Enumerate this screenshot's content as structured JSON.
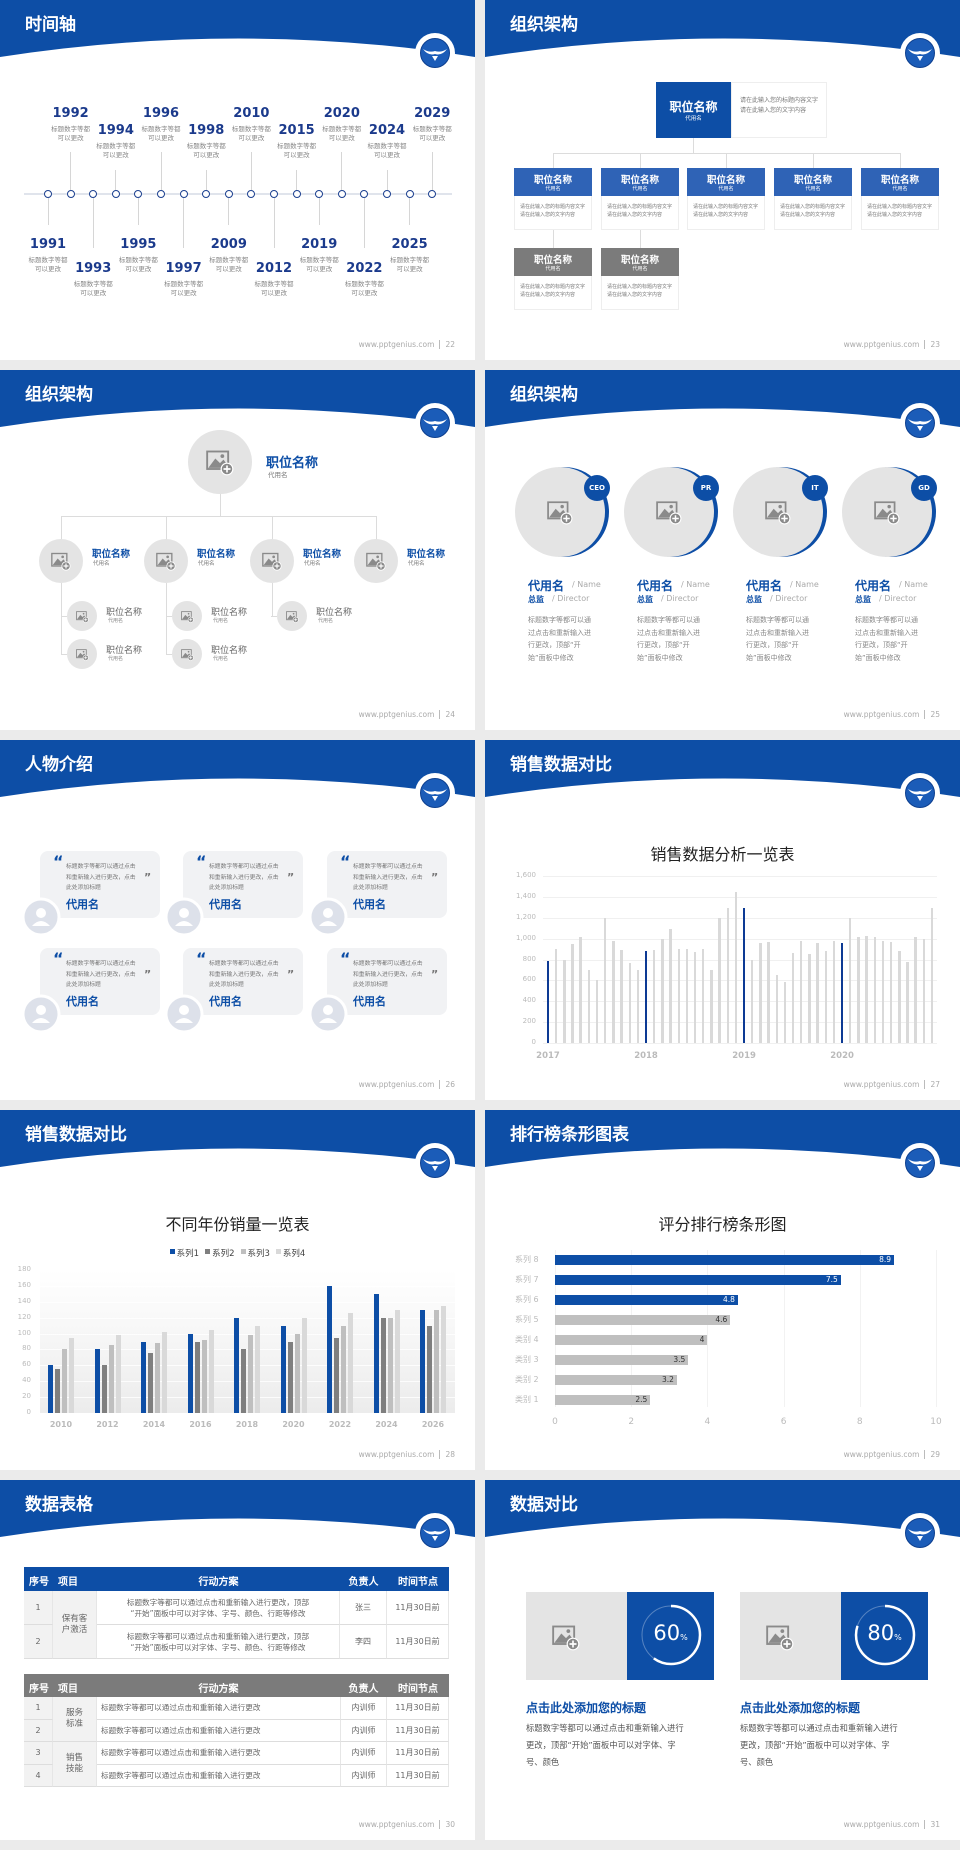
{
  "footer_url": "www.pptgenius.com",
  "colors": {
    "primary": "#0d4ea6",
    "org_box": "#2f63b6",
    "gray_box": "#7b7b7b",
    "light_gray": "#e4e4e4"
  },
  "slides": [
    {
      "title": "时间轴",
      "page": "22",
      "timeline": [
        {
          "year": "1991",
          "desc": [
            "标题数字等都",
            "可以更改"
          ]
        },
        {
          "year": "1992",
          "desc": [
            "标题数字等都",
            "可以更改"
          ]
        },
        {
          "year": "1993",
          "desc": [
            "标题数字等都",
            "可以更改"
          ]
        },
        {
          "year": "1994",
          "desc": [
            "标题数字等都",
            "可以更改"
          ]
        },
        {
          "year": "1995",
          "desc": [
            "标题数字等都",
            "可以更改"
          ]
        },
        {
          "year": "1996",
          "desc": [
            "标题数字等都",
            "可以更改"
          ]
        },
        {
          "year": "1997",
          "desc": [
            "标题数字等都",
            "可以更改"
          ]
        },
        {
          "year": "1998",
          "desc": [
            "标题数字等都",
            "可以更改"
          ]
        },
        {
          "year": "2009",
          "desc": [
            "标题数字等都",
            "可以更改"
          ]
        },
        {
          "year": "2010",
          "desc": [
            "标题数字等都",
            "可以更改"
          ]
        },
        {
          "year": "2012",
          "desc": [
            "标题数字等都",
            "可以更改"
          ]
        },
        {
          "year": "2015",
          "desc": [
            "标题数字等都",
            "可以更改"
          ]
        },
        {
          "year": "2019",
          "desc": [
            "标题数字等都",
            "可以更改"
          ]
        },
        {
          "year": "2020",
          "desc": [
            "标题数字等都",
            "可以更改"
          ]
        },
        {
          "year": "2022",
          "desc": [
            "标题数字等都",
            "可以更改"
          ]
        },
        {
          "year": "2024",
          "desc": [
            "标题数字等都",
            "可以更改"
          ]
        },
        {
          "year": "2025",
          "desc": [
            "标题数字等都",
            "可以更改"
          ]
        },
        {
          "year": "2029",
          "desc": [
            "标题数字等都",
            "可以更改"
          ]
        }
      ]
    },
    {
      "title": "组织架构",
      "page": "23",
      "top": {
        "name": "职位名称",
        "sub": "代用名",
        "desc": "请在此输入您的标题内容文字请在此输入您的文字内容"
      },
      "children": [
        {
          "name": "职位名称",
          "sub": "代用名",
          "desc": "请在此输入您的标题内容文字请在此输入您的文字内容"
        },
        {
          "name": "职位名称",
          "sub": "代用名",
          "desc": "请在此输入您的标题内容文字请在此输入您的文字内容"
        },
        {
          "name": "职位名称",
          "sub": "代用名",
          "desc": "请在此输入您的标题内容文字请在此输入您的文字内容"
        },
        {
          "name": "职位名称",
          "sub": "代用名",
          "desc": "请在此输入您的标题内容文字请在此输入您的文字内容"
        },
        {
          "name": "职位名称",
          "sub": "代用名",
          "desc": "请在此输入您的标题内容文字请在此输入您的文字内容"
        }
      ],
      "grandchildren": [
        {
          "name": "职位名称",
          "sub": "代用名",
          "desc": "请在此输入您的标题内容文字请在此输入您的文字内容"
        },
        {
          "name": "职位名称",
          "sub": "代用名",
          "desc": "请在此输入您的标题内容文字请在此输入您的文字内容"
        }
      ]
    },
    {
      "title": "组织架构",
      "page": "24",
      "top": {
        "name": "职位名称",
        "sub": "代用名"
      },
      "level2": [
        {
          "name": "职位名称",
          "sub": "代用名"
        },
        {
          "name": "职位名称",
          "sub": "代用名"
        },
        {
          "name": "职位名称",
          "sub": "代用名"
        },
        {
          "name": "职位名称",
          "sub": "代用名"
        }
      ],
      "level3": [
        {
          "name": "职位名称",
          "sub": "代用名"
        },
        {
          "name": "职位名称",
          "sub": "代用名"
        },
        {
          "name": "职位名称",
          "sub": "代用名"
        },
        {
          "name": "职位名称",
          "sub": "代用名"
        },
        {
          "name": "职位名称",
          "sub": "代用名"
        }
      ]
    },
    {
      "title": "组织架构",
      "page": "25",
      "members": [
        {
          "badge": "CEO",
          "name": "代用名",
          "name_en": "/ Name",
          "role": "总监",
          "role_en": "/ Director",
          "desc": [
            "标题数字等都可以通",
            "过点击和重新输入进",
            "行更改，顶部“开",
            "始”面板中修改"
          ]
        },
        {
          "badge": "PR",
          "name": "代用名",
          "name_en": "/ Name",
          "role": "总监",
          "role_en": "/ Director",
          "desc": [
            "标题数字等都可以通",
            "过点击和重新输入进",
            "行更改，顶部“开",
            "始”面板中修改"
          ]
        },
        {
          "badge": "IT",
          "name": "代用名",
          "name_en": "/ Name",
          "role": "总监",
          "role_en": "/ Director",
          "desc": [
            "标题数字等都可以通",
            "过点击和重新输入进",
            "行更改，顶部“开",
            "始”面板中修改"
          ]
        },
        {
          "badge": "GD",
          "name": "代用名",
          "name_en": "/ Name",
          "role": "总监",
          "role_en": "/ Director",
          "desc": [
            "标题数字等都可以通",
            "过点击和重新输入进",
            "行更改，顶部“开",
            "始”面板中修改"
          ]
        }
      ]
    },
    {
      "title": "人物介绍",
      "page": "26",
      "cards": [
        {
          "quote": [
            "标题数字等都可以通过点击",
            "和重新输入进行更改，点击",
            "此处添加标题"
          ],
          "name": "代用名"
        },
        {
          "quote": [
            "标题数字等都可以通过点击",
            "和重新输入进行更改，点击",
            "此处添加标题"
          ],
          "name": "代用名"
        },
        {
          "quote": [
            "标题数字等都可以通过点击",
            "和重新输入进行更改，点击",
            "此处添加标题"
          ],
          "name": "代用名"
        },
        {
          "quote": [
            "标题数字等都可以通过点击",
            "和重新输入进行更改，点击",
            "此处添加标题"
          ],
          "name": "代用名"
        },
        {
          "quote": [
            "标题数字等都可以通过点击",
            "和重新输入进行更改，点击",
            "此处添加标题"
          ],
          "name": "代用名"
        },
        {
          "quote": [
            "标题数字等都可以通过点击",
            "和重新输入进行更改，点击",
            "此处添加标题"
          ],
          "name": "代用名"
        }
      ]
    },
    {
      "title": "销售数据对比",
      "page": "27"
    },
    {
      "title": "销售数据对比",
      "page": "28"
    },
    {
      "title": "排行榜条形图表",
      "page": "29"
    },
    {
      "title": "数据表格",
      "page": "30",
      "table1": {
        "headers": [
          "序号",
          "项目",
          "行动方案",
          "负责人",
          "时间节点"
        ],
        "group": "保有客户激活",
        "rows": [
          {
            "no": "1",
            "plan": [
              "标题数字等都可以通过点击和重新输入进行更改，顶部",
              "“开始”面板中可以对字体、字号、颜色、行距等修改"
            ],
            "owner": "张三",
            "deadline": "11月30日前"
          },
          {
            "no": "2",
            "plan": [
              "标题数字等都可以通过点击和重新输入进行更改，顶部",
              "“开始”面板中可以对字体、字号、颜色、行距等修改"
            ],
            "owner": "李四",
            "deadline": "11月30日前"
          }
        ]
      },
      "table2": {
        "headers": [
          "序号",
          "项目",
          "行动方案",
          "负责人",
          "时间节点"
        ],
        "groups": [
          "服务标准",
          "销售技能"
        ],
        "rows": [
          {
            "no": "1",
            "plan": "标题数字等都可以通过点击和重新输入进行更改",
            "owner": "内训师",
            "deadline": "11月30日前"
          },
          {
            "no": "2",
            "plan": "标题数字等都可以通过点击和重新输入进行更改",
            "owner": "内训师",
            "deadline": "11月30日前"
          },
          {
            "no": "3",
            "plan": "标题数字等都可以通过点击和重新输入进行更改",
            "owner": "内训师",
            "deadline": "11月30日前"
          },
          {
            "no": "4",
            "plan": "标题数字等都可以通过点击和重新输入进行更改",
            "owner": "内训师",
            "deadline": "11月30日前"
          }
        ]
      }
    },
    {
      "title": "数据对比",
      "page": "31",
      "items": [
        {
          "percent": 60,
          "percent_label": "60",
          "unit": "%",
          "title": "点击此处添加您的标题",
          "desc": [
            "标题数字等都可以通过点击和重新输入进行",
            "更改，顶部“开始”面板中可以对字体、字",
            "号、颜色"
          ]
        },
        {
          "percent": 80,
          "percent_label": "80",
          "unit": "%",
          "title": "点击此处添加您的标题",
          "desc": [
            "标题数字等都可以通过点击和重新输入进行",
            "更改，顶部“开始”面板中可以对字体、字",
            "号、颜色"
          ]
        }
      ]
    }
  ],
  "chart_data": [
    {
      "slide": "27",
      "type": "bar",
      "title": "销售数据分析一览表",
      "x_ticks": [
        "2017",
        "2018",
        "2019",
        "2020"
      ],
      "values": [
        790,
        900,
        800,
        950,
        1015,
        695,
        600,
        1200,
        980,
        890,
        770,
        695,
        880,
        890,
        995,
        1090,
        900,
        900,
        875,
        900,
        695,
        1200,
        1295,
        1445,
        1290,
        800,
        960,
        965,
        655,
        585,
        865,
        980,
        855,
        960,
        885,
        980,
        960,
        1200,
        1015,
        1025,
        1015,
        980,
        965,
        885,
        780,
        1015,
        995,
        1295
      ],
      "highlight_indices": [
        0,
        12,
        24,
        36
      ],
      "ylim": [
        0,
        1600
      ],
      "yticks": [
        "0",
        "200",
        "400",
        "600",
        "800",
        "1,000",
        "1,200",
        "1,400",
        "1,600"
      ],
      "grid": true,
      "colors": {
        "highlight": "#0d3a94",
        "default": "#d9d9d9"
      }
    },
    {
      "slide": "28",
      "type": "bar",
      "title": "不同年份销量一览表",
      "categories": [
        "2010",
        "2012",
        "2014",
        "2016",
        "2018",
        "2020",
        "2022",
        "2024",
        "2026"
      ],
      "series": [
        {
          "name": "系列1",
          "color": "#0d4ea6",
          "values": [
            60,
            80,
            90,
            100,
            120,
            110,
            160,
            150,
            130
          ]
        },
        {
          "name": "系列2",
          "color": "#7f7f7f",
          "values": [
            55,
            60,
            75,
            90,
            80,
            90,
            95,
            120,
            110
          ]
        },
        {
          "name": "系列3",
          "color": "#bfbfbf",
          "values": [
            80,
            85,
            88,
            92,
            98,
            100,
            110,
            120,
            130
          ]
        },
        {
          "name": "系列4",
          "color": "#d9d9d9",
          "values": [
            95,
            98,
            102,
            105,
            110,
            120,
            126,
            130,
            135
          ]
        }
      ],
      "ylim": [
        0,
        180
      ],
      "yticks": [
        "0",
        "20",
        "40",
        "60",
        "80",
        "100",
        "120",
        "140",
        "160",
        "180"
      ],
      "legend": "top",
      "grid": true
    },
    {
      "slide": "29",
      "type": "bar",
      "orientation": "horizontal",
      "title": "评分排行榜条形图",
      "categories": [
        "系列 8",
        "系列 7",
        "系列 6",
        "系列 5",
        "类别 4",
        "类别 3",
        "类别 2",
        "类别 1"
      ],
      "values": [
        8.9,
        7.5,
        4.8,
        4.6,
        4,
        3.5,
        3.2,
        2.5
      ],
      "value_labels": [
        "8.9",
        "7.5",
        "4.8",
        "4.6",
        "4",
        "3.5",
        "3.2",
        "2.5"
      ],
      "highlight_count": 3,
      "xlim": [
        0,
        10
      ],
      "xticks": [
        "0",
        "2",
        "4",
        "6",
        "8",
        "10"
      ],
      "colors": {
        "highlight": "#0d4ea6",
        "default": "#bfbfbf"
      }
    }
  ]
}
